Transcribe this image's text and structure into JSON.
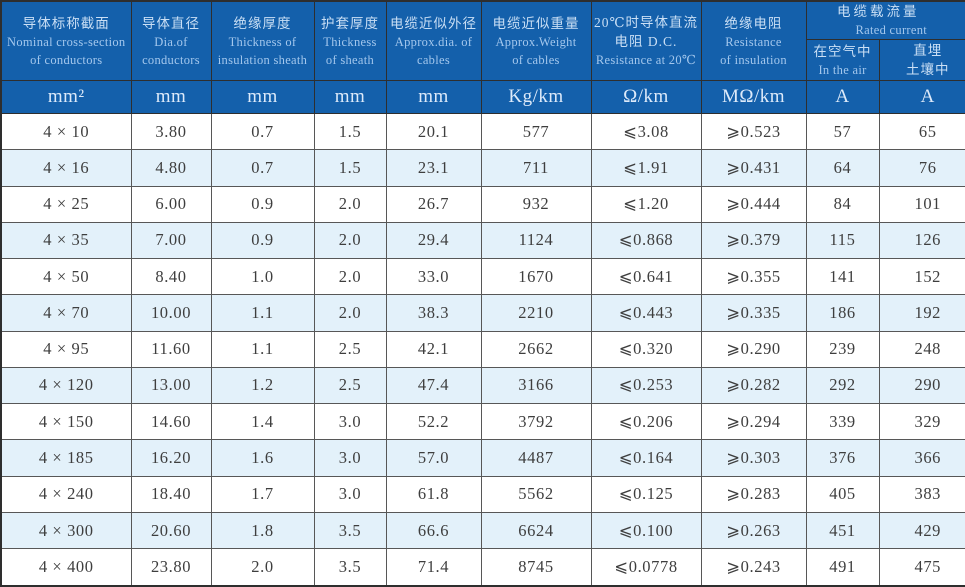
{
  "chart_data": {
    "type": "table",
    "columns": [
      {
        "lines": [
          "导体标称截面",
          "Nominal cross-section",
          "of conductors"
        ],
        "unit": "mm²"
      },
      {
        "lines": [
          "导体直径",
          "Dia.of",
          "conductors"
        ],
        "unit": "mm"
      },
      {
        "lines": [
          "绝缘厚度",
          "Thickness of",
          "insulation sheath"
        ],
        "unit": "mm"
      },
      {
        "lines": [
          "护套厚度",
          "Thickness",
          "of sheath"
        ],
        "unit": "mm"
      },
      {
        "lines": [
          "电缆近似外径",
          "Approx.dia. of",
          "cables"
        ],
        "unit": "mm"
      },
      {
        "lines": [
          "电缆近似重量",
          "Approx.Weight",
          "of cables"
        ],
        "unit": "Kg/km"
      },
      {
        "lines": [
          "20℃时导体直流",
          "电阻 D.C.",
          "Resistance at 20℃"
        ],
        "unit": "Ω/km"
      },
      {
        "lines": [
          "绝缘电阻",
          "Resistance",
          "of insulation"
        ],
        "unit": "MΩ/km"
      }
    ],
    "group": {
      "zh": "电缆载流量",
      "en": "Rated current",
      "subcolumns": [
        {
          "lines": [
            "在空气中",
            "In the air"
          ],
          "unit": "A"
        },
        {
          "lines": [
            "直埋",
            "土壤中"
          ],
          "unit": "A"
        }
      ]
    },
    "rows": [
      [
        "4 × 10",
        "3.80",
        "0.7",
        "1.5",
        "20.1",
        "577",
        "⩽3.08",
        "⩾0.523",
        "57",
        "65"
      ],
      [
        "4 × 16",
        "4.80",
        "0.7",
        "1.5",
        "23.1",
        "711",
        "⩽1.91",
        "⩾0.431",
        "64",
        "76"
      ],
      [
        "4 × 25",
        "6.00",
        "0.9",
        "2.0",
        "26.7",
        "932",
        "⩽1.20",
        "⩾0.444",
        "84",
        "101"
      ],
      [
        "4 × 35",
        "7.00",
        "0.9",
        "2.0",
        "29.4",
        "1124",
        "⩽0.868",
        "⩾0.379",
        "115",
        "126"
      ],
      [
        "4 × 50",
        "8.40",
        "1.0",
        "2.0",
        "33.0",
        "1670",
        "⩽0.641",
        "⩾0.355",
        "141",
        "152"
      ],
      [
        "4 × 70",
        "10.00",
        "1.1",
        "2.0",
        "38.3",
        "2210",
        "⩽0.443",
        "⩾0.335",
        "186",
        "192"
      ],
      [
        "4 × 95",
        "11.60",
        "1.1",
        "2.5",
        "42.1",
        "2662",
        "⩽0.320",
        "⩾0.290",
        "239",
        "248"
      ],
      [
        "4 × 120",
        "13.00",
        "1.2",
        "2.5",
        "47.4",
        "3166",
        "⩽0.253",
        "⩾0.282",
        "292",
        "290"
      ],
      [
        "4 × 150",
        "14.60",
        "1.4",
        "3.0",
        "52.2",
        "3792",
        "⩽0.206",
        "⩾0.294",
        "339",
        "329"
      ],
      [
        "4 × 185",
        "16.20",
        "1.6",
        "3.0",
        "57.0",
        "4487",
        "⩽0.164",
        "⩾0.303",
        "376",
        "366"
      ],
      [
        "4 × 240",
        "18.40",
        "1.7",
        "3.0",
        "61.8",
        "5562",
        "⩽0.125",
        "⩾0.283",
        "405",
        "383"
      ],
      [
        "4 × 300",
        "20.60",
        "1.8",
        "3.5",
        "66.6",
        "6624",
        "⩽0.100",
        "⩾0.263",
        "451",
        "429"
      ],
      [
        "4 × 400",
        "23.80",
        "2.0",
        "3.5",
        "71.4",
        "8745",
        "⩽0.0778",
        "⩾0.243",
        "491",
        "475"
      ]
    ],
    "colors": {
      "header_bg": "#1460ab",
      "alt_row_bg": "#e3f1fa",
      "header_text_zh": "#cadff5",
      "header_text_en": "#a3c7ed",
      "body_text": "#3e3e3e"
    }
  }
}
